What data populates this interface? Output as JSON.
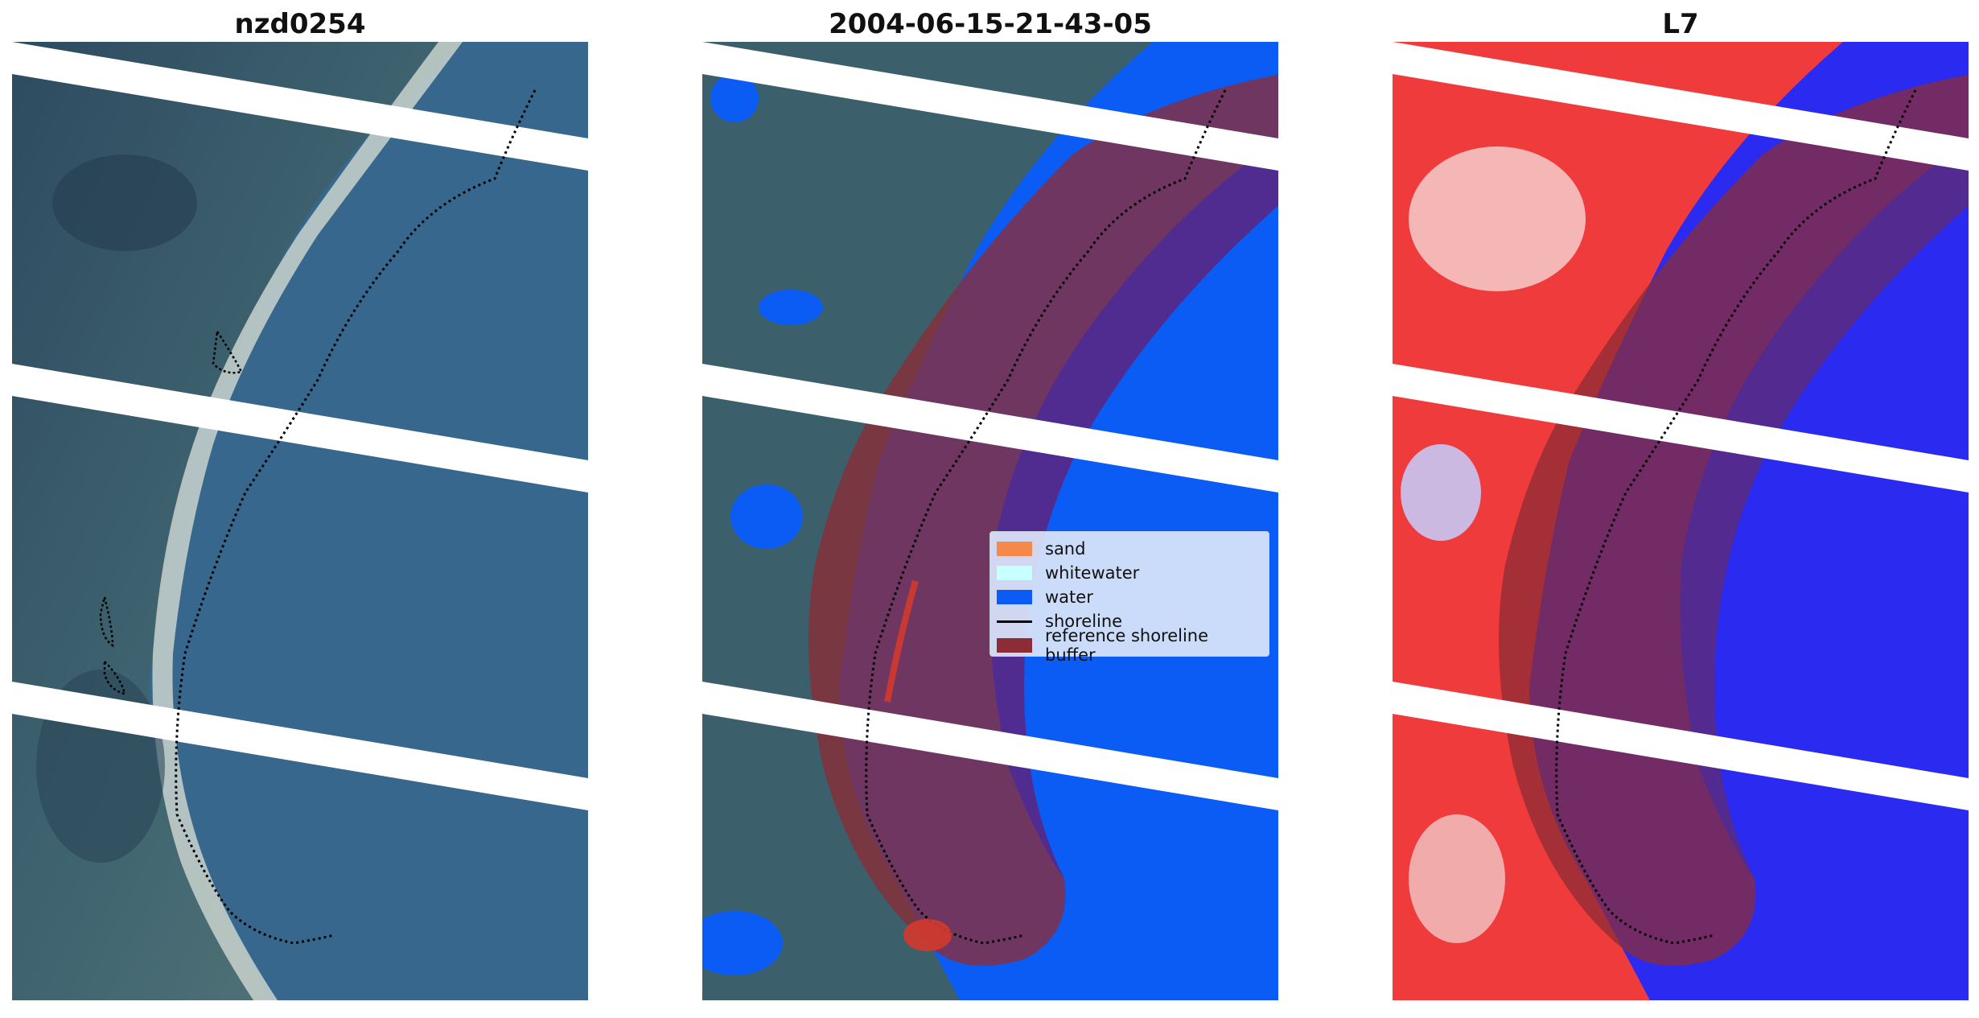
{
  "panels": [
    {
      "title": "nzd0254"
    },
    {
      "title": "2004-06-15-21-43-05"
    },
    {
      "title": "L7"
    }
  ],
  "legend": {
    "items": [
      {
        "label": "sand",
        "color": "#f5894a",
        "kind": "patch"
      },
      {
        "label": "whitewater",
        "color": "#c8ffff",
        "kind": "patch"
      },
      {
        "label": "water",
        "color": "#0a5cf5",
        "kind": "patch"
      },
      {
        "label": "shoreline",
        "color": "#000000",
        "kind": "line"
      },
      {
        "label": "reference shoreline buffer",
        "color": "#8b2c36",
        "kind": "patch"
      }
    ]
  },
  "colors": {
    "land_dark": "#2f4e64",
    "sea_blue": "#37678c",
    "sand_pale": "#c9d2cc",
    "classified_water": "#0a5cf5",
    "buffer": "#8b2c36",
    "land_index": "#ef3b3b",
    "water_index": "#2a2af0",
    "gap": "#ffffff"
  }
}
